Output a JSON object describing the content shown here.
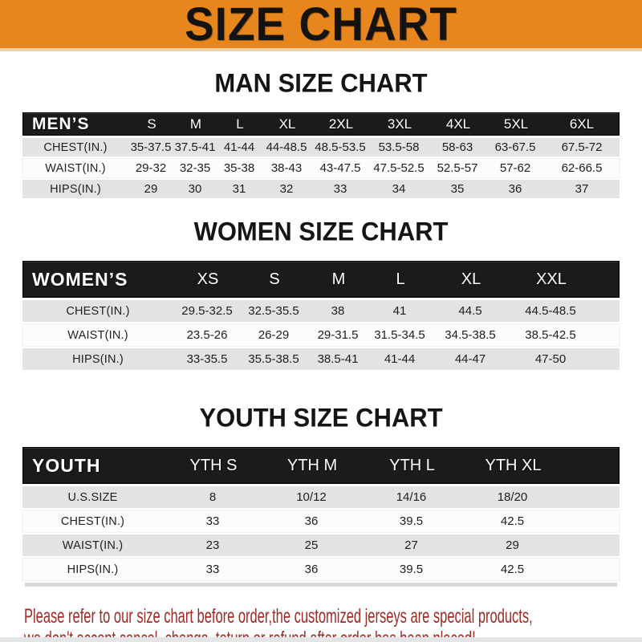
{
  "banner": {
    "title": "SIZE CHART"
  },
  "sections": [
    {
      "title": "MAN SIZE CHART",
      "header_label": "MEN’S",
      "columns": [
        "S",
        "M",
        "L",
        "XL",
        "2XL",
        "3XL",
        "4XL",
        "5XL",
        "6XL"
      ],
      "rows": [
        {
          "label": "CHEST(IN.)",
          "values": [
            "35-37.5",
            "37.5-41",
            "41-44",
            "44-48.5",
            "48.5-53.5",
            "53.5-58",
            "58-63",
            "63-67.5",
            "67.5-72"
          ]
        },
        {
          "label": "WAIST(IN.)",
          "values": [
            "29-32",
            "32-35",
            "35-38",
            "38-43",
            "43-47.5",
            "47.5-52.5",
            "52.5-57",
            "57-62",
            "62-66.5"
          ]
        },
        {
          "label": "HIPS(IN.)",
          "values": [
            "29",
            "30",
            "31",
            "32",
            "33",
            "34",
            "35",
            "36",
            "37"
          ]
        }
      ]
    },
    {
      "title": "WOMEN SIZE CHART",
      "header_label": "WOMEN’S",
      "columns": [
        "XS",
        "S",
        "M",
        "L",
        "XL",
        "XXL"
      ],
      "rows": [
        {
          "label": "CHEST(IN.)",
          "values": [
            "29.5-32.5",
            "32.5-35.5",
            "38",
            "41",
            "44.5",
            "44.5-48.5"
          ]
        },
        {
          "label": "WAIST(IN.)",
          "values": [
            "23.5-26",
            "26-29",
            "29-31.5",
            "31.5-34.5",
            "34.5-38.5",
            "38.5-42.5"
          ]
        },
        {
          "label": "HIPS(IN.)",
          "values": [
            "33-35.5",
            "35.5-38.5",
            "38.5-41",
            "41-44",
            "44-47",
            "47-50"
          ]
        }
      ]
    },
    {
      "title": "YOUTH SIZE CHART",
      "header_label": "YOUTH",
      "columns": [
        "YTH S",
        "YTH M",
        "YTH L",
        "YTH XL"
      ],
      "rows": [
        {
          "label": "U.S.SIZE",
          "values": [
            "8",
            "10/12",
            "14/16",
            "18/20"
          ]
        },
        {
          "label": "CHEST(IN.)",
          "values": [
            "33",
            "36",
            "39.5",
            "42.5"
          ]
        },
        {
          "label": "WAIST(IN.)",
          "values": [
            "23",
            "25",
            "27",
            "29"
          ]
        },
        {
          "label": "HIPS(IN.)",
          "values": [
            "33",
            "36",
            "39.5",
            "42.5"
          ]
        }
      ]
    }
  ],
  "footer": {
    "line1": "Please refer to our size chart before order,the customized jerseys are special products,",
    "line2": "we don't accept cancel, change, teturn or refund after order has been placed!"
  },
  "colors": {
    "banner_bg": "#E8861E",
    "header_bar": "#1B1B1B",
    "row_gray": "#E3E3E4",
    "row_white": "#FCFCFC",
    "note_red": "#9C2B24"
  }
}
